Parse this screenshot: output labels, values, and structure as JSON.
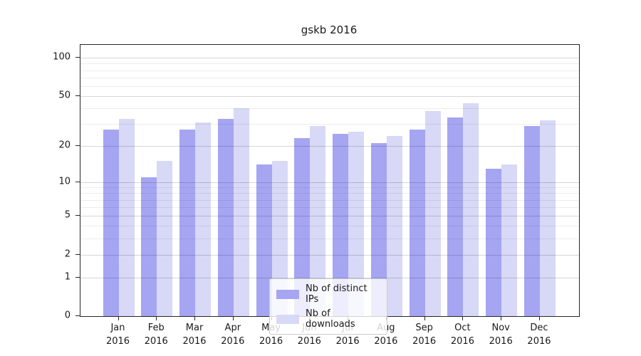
{
  "figure": {
    "background": "#ffffff",
    "text_color": "#1a1a1a"
  },
  "chart_data": {
    "type": "bar",
    "title": "gskb 2016",
    "categories": [
      "Jan",
      "Feb",
      "Mar",
      "Apr",
      "May",
      "Jun",
      "Jul",
      "Aug",
      "Sep",
      "Oct",
      "Nov",
      "Dec"
    ],
    "category_year": "2016",
    "series": [
      {
        "name": "Nb of distinct IPs",
        "color": "#a5a5f2",
        "values": [
          27,
          11,
          27,
          33,
          14,
          23,
          25,
          21,
          27,
          34,
          13,
          29
        ]
      },
      {
        "name": "Nb of downloads",
        "color": "#d8d8f7",
        "values": [
          33,
          15,
          31,
          40,
          15,
          29,
          26,
          24,
          38,
          44,
          14,
          32
        ]
      }
    ],
    "xlabel": "",
    "ylabel": "",
    "yscale": "log10(1+value)",
    "ylim": [
      0,
      126
    ],
    "yticks_labeled": [
      0,
      1,
      2,
      5,
      10,
      20,
      50,
      100
    ],
    "yticks_minor": [
      3,
      4,
      6,
      7,
      8,
      9,
      30,
      40,
      60,
      70,
      80,
      90
    ],
    "grid": "horizontal gridlines drawn over bars",
    "legend_position": "lower center"
  }
}
